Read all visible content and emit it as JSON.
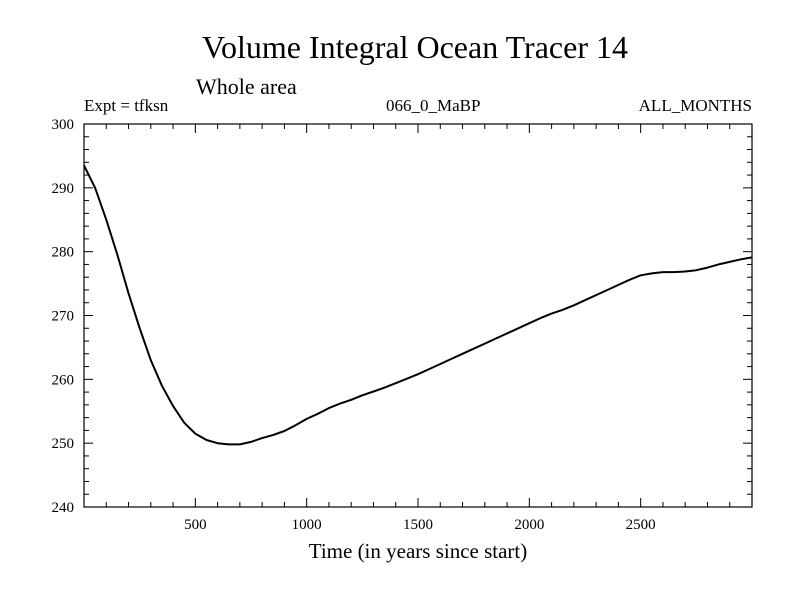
{
  "chart_data": {
    "type": "line",
    "title": "Volume Integral Ocean Tracer 14",
    "subtitle": "Whole area",
    "annotations": {
      "experiment": "Expt = tfksn",
      "period": "066_0_MaBP",
      "months": "ALL_MONTHS"
    },
    "xlabel": "Time (in years since start)",
    "ylabel": "",
    "xlim": [
      0,
      3000
    ],
    "ylim": [
      240,
      300
    ],
    "x_ticks": [
      500,
      1000,
      1500,
      2000,
      2500
    ],
    "y_ticks": [
      240,
      250,
      260,
      270,
      280,
      290,
      300
    ],
    "series": [
      {
        "name": "Ocean Tracer 14",
        "color": "#000000",
        "x": [
          0,
          50,
          100,
          150,
          200,
          250,
          300,
          350,
          400,
          450,
          500,
          550,
          600,
          650,
          700,
          750,
          800,
          850,
          900,
          950,
          1000,
          1050,
          1100,
          1150,
          1200,
          1250,
          1300,
          1350,
          1400,
          1450,
          1500,
          1550,
          1600,
          1650,
          1700,
          1750,
          1800,
          1850,
          1900,
          1950,
          2000,
          2050,
          2100,
          2150,
          2200,
          2250,
          2300,
          2350,
          2400,
          2450,
          2500,
          2550,
          2600,
          2650,
          2700,
          2750,
          2800,
          2850,
          2900,
          2950,
          3000
        ],
        "values": [
          293.5,
          290.0,
          285.0,
          279.5,
          273.5,
          268.0,
          263.0,
          259.0,
          255.8,
          253.2,
          251.5,
          250.5,
          250.0,
          249.8,
          249.8,
          250.2,
          250.8,
          251.3,
          251.9,
          252.8,
          253.8,
          254.6,
          255.5,
          256.2,
          256.8,
          257.5,
          258.1,
          258.7,
          259.4,
          260.1,
          260.8,
          261.6,
          262.4,
          263.2,
          264.0,
          264.8,
          265.6,
          266.4,
          267.2,
          268.0,
          268.8,
          269.6,
          270.3,
          270.9,
          271.6,
          272.4,
          273.2,
          274.0,
          274.8,
          275.6,
          276.3,
          276.6,
          276.8,
          276.8,
          276.9,
          277.1,
          277.5,
          278.0,
          278.4,
          278.8,
          279.1
        ]
      }
    ]
  }
}
